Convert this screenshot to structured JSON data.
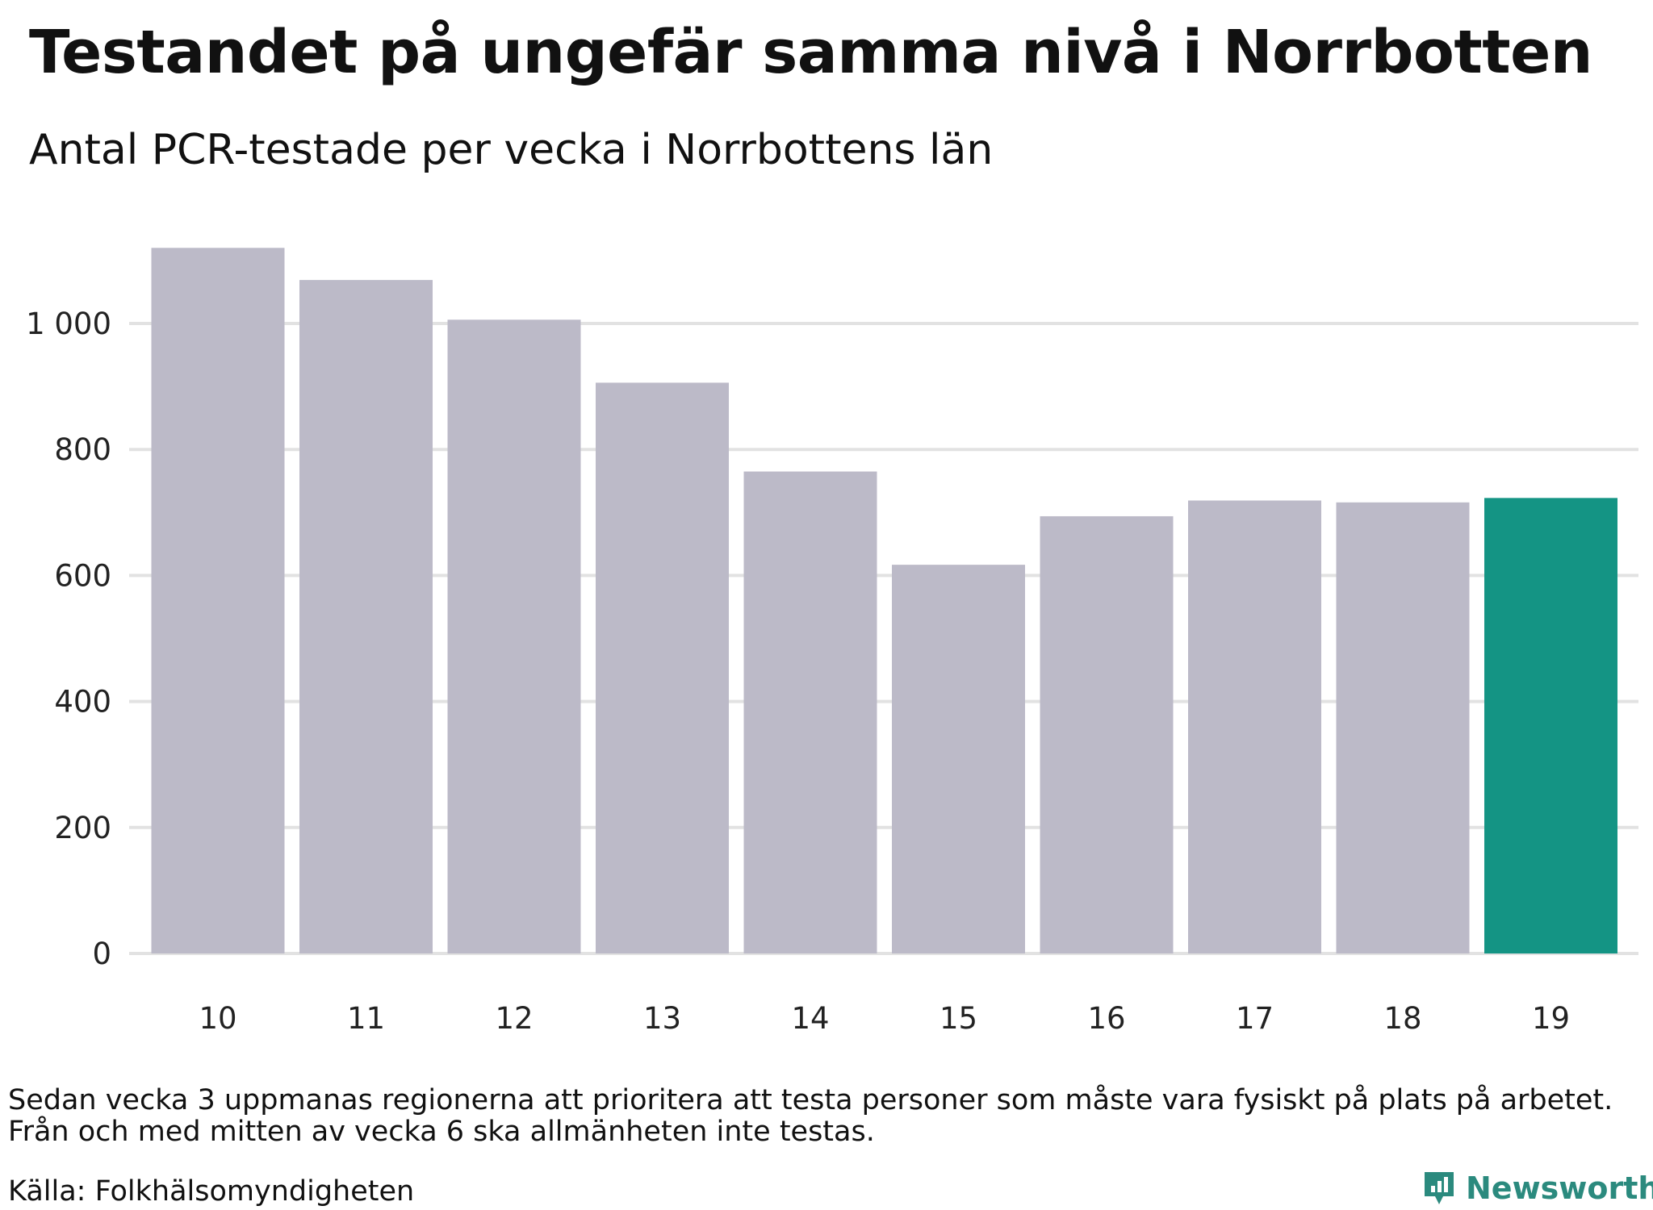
{
  "title": "Testandet på ungefär samma nivå i Norrbotten",
  "subtitle": "Antal PCR-testade per vecka i Norrbottens län",
  "note_lines": [
    "Sedan vecka 3 uppmanas regionerna att prioritera att testa personer som måste vara fysiskt på plats på arbetet.",
    "Från och med mitten av vecka 6 ska allmänheten inte testas."
  ],
  "source": "Källa: Folkhälsomyndigheten",
  "brand": "Newsworthy",
  "colors": {
    "bar": "#bcbac8",
    "highlight": "#149484",
    "grid": "#e2e2e2",
    "brand": "#2b8a7e"
  },
  "chart_data": {
    "type": "bar",
    "categories": [
      "10",
      "11",
      "12",
      "13",
      "14",
      "15",
      "16",
      "17",
      "18",
      "19"
    ],
    "values": [
      1120,
      1069,
      1006,
      906,
      765,
      617,
      694,
      719,
      716,
      723
    ],
    "highlight_category": "19",
    "ylim": [
      0,
      1150
    ],
    "yticks": [
      0,
      200,
      400,
      600,
      800,
      1000
    ],
    "ytick_labels": [
      "0",
      "200",
      "400",
      "600",
      "800",
      "1 000"
    ],
    "grid": true
  }
}
